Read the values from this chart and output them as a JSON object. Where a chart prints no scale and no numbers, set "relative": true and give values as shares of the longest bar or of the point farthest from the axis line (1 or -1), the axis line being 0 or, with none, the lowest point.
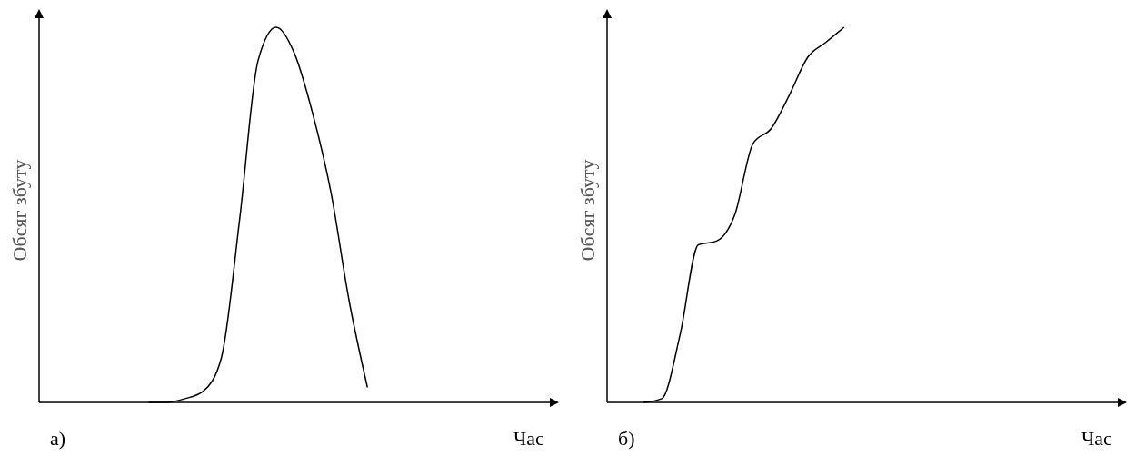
{
  "chart_data": [
    {
      "type": "line",
      "relative": true,
      "xlabel": "Час",
      "ylabel": "Обсяг збуту",
      "annotations": [
        "а)"
      ],
      "color": "#000000",
      "categories": [
        null,
        null,
        null,
        null,
        null,
        null,
        null,
        null,
        null,
        null,
        null,
        null,
        null,
        null,
        null,
        null,
        null,
        null,
        null,
        null,
        null,
        null,
        null,
        null,
        null,
        null,
        null,
        null,
        null
      ],
      "values": [
        null,
        null,
        null,
        null,
        null,
        null,
        0,
        0,
        0.01,
        0.03,
        0.12,
        0.49,
        0.91,
        1.0,
        0.93,
        0.77,
        0.56,
        0.27,
        0.04,
        null,
        null,
        null,
        null,
        null,
        null,
        null,
        null,
        null,
        null
      ]
    },
    {
      "type": "line",
      "relative": true,
      "xlabel": "Час",
      "ylabel": "Обсяг збуту",
      "annotations": [
        "б)"
      ],
      "color": "#000000",
      "categories": [
        null,
        null,
        null,
        null,
        null,
        null,
        null,
        null,
        null,
        null,
        null,
        null,
        null,
        null,
        null,
        null,
        null,
        null,
        null,
        null,
        null,
        null,
        null,
        null,
        null,
        null,
        null,
        null,
        null
      ],
      "values": [
        null,
        null,
        0,
        0.01,
        0.18,
        0.42,
        0.43,
        0.5,
        0.69,
        0.73,
        0.82,
        0.92,
        0.96,
        1.0,
        null,
        null,
        null,
        null,
        null,
        null,
        null,
        null,
        null,
        null,
        null,
        null,
        null,
        null,
        null
      ]
    }
  ]
}
